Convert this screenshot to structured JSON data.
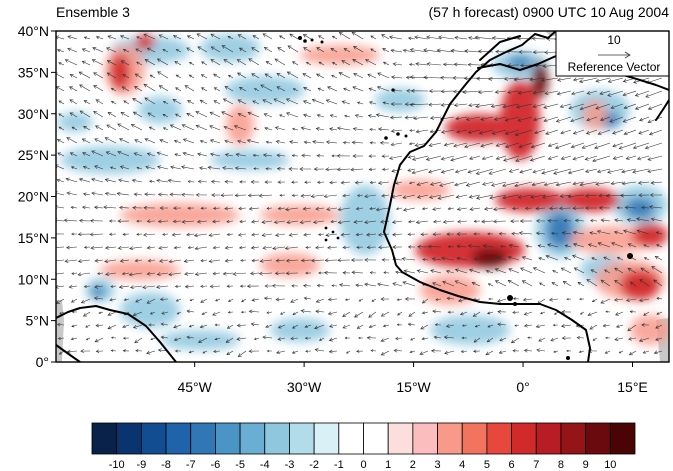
{
  "title_left": "Ensemble 3",
  "title_right": "(57 h forecast) 0900 UTC 10 Aug 2004",
  "reference_vector": {
    "magnitude": "10",
    "label": "Reference Vector"
  },
  "map": {
    "lon_range": [
      -64,
      20
    ],
    "lat_range": [
      0,
      40
    ],
    "lat_labels": [
      {
        "value": 40,
        "text": "40°N"
      },
      {
        "value": 35,
        "text": "35°N"
      },
      {
        "value": 30,
        "text": "30°N"
      },
      {
        "value": 25,
        "text": "25°N"
      },
      {
        "value": 20,
        "text": "20°N"
      },
      {
        "value": 15,
        "text": "15°N"
      },
      {
        "value": 10,
        "text": "10°N"
      },
      {
        "value": 5,
        "text": "5°N"
      },
      {
        "value": 0,
        "text": "0°"
      }
    ],
    "lon_labels": [
      {
        "value": -45,
        "text": "45°W"
      },
      {
        "value": -30,
        "text": "30°W"
      },
      {
        "value": -15,
        "text": "15°W"
      },
      {
        "value": 0,
        "text": "0°"
      },
      {
        "value": 15,
        "text": "15°E"
      }
    ]
  },
  "colorbar": {
    "ticks": [
      "-10",
      "-9",
      "-8",
      "-7",
      "-6",
      "-5",
      "-4",
      "-3",
      "-2",
      "-1",
      "0",
      "1",
      "2",
      "3",
      "4",
      "5",
      "6",
      "7",
      "8",
      "9",
      "10"
    ],
    "colors": [
      "#08224a",
      "#0a3470",
      "#124d92",
      "#1f64ab",
      "#3077b6",
      "#4a94c6",
      "#6aaed4",
      "#8ec7de",
      "#b2dcea",
      "#daf0f7",
      "#ffffff",
      "#ffffff",
      "#fcdede",
      "#fbbdbd",
      "#f8998a",
      "#f2735e",
      "#e8483c",
      "#d2292b",
      "#b81c24",
      "#941418",
      "#6b0a0e",
      "#4a0406"
    ]
  },
  "colors": {
    "land_coast": "#000000",
    "missing": "#c8c8c8",
    "vector": "#333333"
  }
}
